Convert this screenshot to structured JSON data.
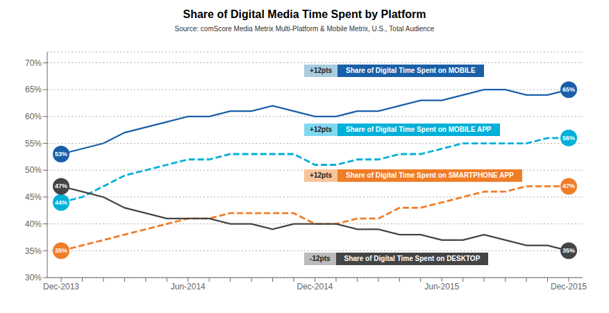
{
  "chart_data": {
    "type": "line",
    "title": "Share of Digital Media Time Spent by Platform",
    "subtitle": "Source: comScore Media Metrix Multi-Platform & Mobile Metrix, U.S., Total Audience",
    "categories": [
      "Dec-2013",
      null,
      null,
      null,
      null,
      null,
      "Jun-2014",
      null,
      null,
      null,
      null,
      null,
      "Dec-2014",
      null,
      null,
      null,
      null,
      null,
      "Jun-2015",
      null,
      null,
      null,
      null,
      null,
      "Dec-2015"
    ],
    "series": [
      {
        "color": "#1a5fa8",
        "line_style": "solid",
        "values": [
          53,
          54,
          55,
          57,
          58,
          59,
          60,
          60,
          61,
          61,
          62,
          61,
          60,
          60,
          61,
          61,
          62,
          63,
          63,
          64,
          65,
          65,
          64,
          64,
          65
        ],
        "value_labels": [
          "53%",
          null,
          null,
          null,
          null,
          null,
          null,
          null,
          null,
          null,
          null,
          null,
          null,
          null,
          null,
          null,
          null,
          null,
          null,
          null,
          null,
          null,
          null,
          null,
          "65%"
        ]
      },
      {
        "color": "#00b0d8",
        "line_style": "dashed",
        "values": [
          44,
          45,
          47,
          49,
          50,
          51,
          52,
          52,
          53,
          53,
          53,
          53,
          51,
          51,
          52,
          52,
          53,
          53,
          54,
          55,
          55,
          55,
          55,
          56,
          56
        ],
        "value_labels": [
          "44%",
          null,
          null,
          null,
          null,
          null,
          null,
          null,
          null,
          null,
          null,
          null,
          null,
          null,
          null,
          null,
          null,
          null,
          null,
          null,
          null,
          null,
          null,
          null,
          "56%"
        ]
      },
      {
        "color": "#f07d28",
        "line_style": "dashed",
        "values": [
          35,
          36,
          37,
          38,
          39,
          40,
          41,
          41,
          42,
          42,
          42,
          42,
          40,
          40,
          41,
          41,
          43,
          43,
          44,
          45,
          46,
          46,
          47,
          47,
          47
        ],
        "value_labels": [
          "35%",
          null,
          null,
          null,
          null,
          null,
          null,
          null,
          null,
          null,
          null,
          null,
          null,
          null,
          null,
          null,
          null,
          null,
          null,
          null,
          null,
          null,
          null,
          null,
          "47%"
        ]
      },
      {
        "color": "#444444",
        "line_style": "solid",
        "values": [
          47,
          46,
          45,
          43,
          42,
          41,
          41,
          41,
          40,
          40,
          39,
          40,
          40,
          40,
          39,
          39,
          38,
          38,
          37,
          37,
          38,
          37,
          36,
          36,
          35
        ],
        "value_labels": [
          "47%",
          null,
          null,
          null,
          null,
          null,
          null,
          null,
          null,
          null,
          null,
          null,
          null,
          null,
          null,
          null,
          null,
          null,
          null,
          null,
          null,
          null,
          null,
          null,
          "35%"
        ]
      }
    ],
    "ylim": [
      30,
      72
    ],
    "yticks": [
      {
        "value": 30,
        "label": "30%"
      },
      {
        "value": 35,
        "label": "35%"
      },
      {
        "value": 40,
        "label": "40%"
      },
      {
        "value": 45,
        "label": "45%"
      },
      {
        "value": 50,
        "label": "50%"
      },
      {
        "value": 55,
        "label": "55%"
      },
      {
        "value": 60,
        "label": "60%"
      },
      {
        "value": 65,
        "label": "65%"
      },
      {
        "value": 70,
        "label": "70%"
      }
    ],
    "grid": true,
    "annotations": [
      {
        "label": "+12pts",
        "label_color": "#a8cce0",
        "text": "Share of Digital Time Spent on MOBILE",
        "color": "#1a5fa8"
      },
      {
        "label": "+12pts",
        "label_color": "#80d8f0",
        "text": "Share of Digital Time Spent on MOBILE APP",
        "color": "#00b0d8"
      },
      {
        "label": "+12pts",
        "label_color": "#f9c499",
        "text": "Share of Digital Time Spent on SMARTPHONE APP",
        "color": "#f07d28"
      },
      {
        "label": "-12pts",
        "label_color": "#bbbbbb",
        "text": "Share of Digital Time Spent on DESKTOP",
        "color": "#444444"
      }
    ]
  }
}
